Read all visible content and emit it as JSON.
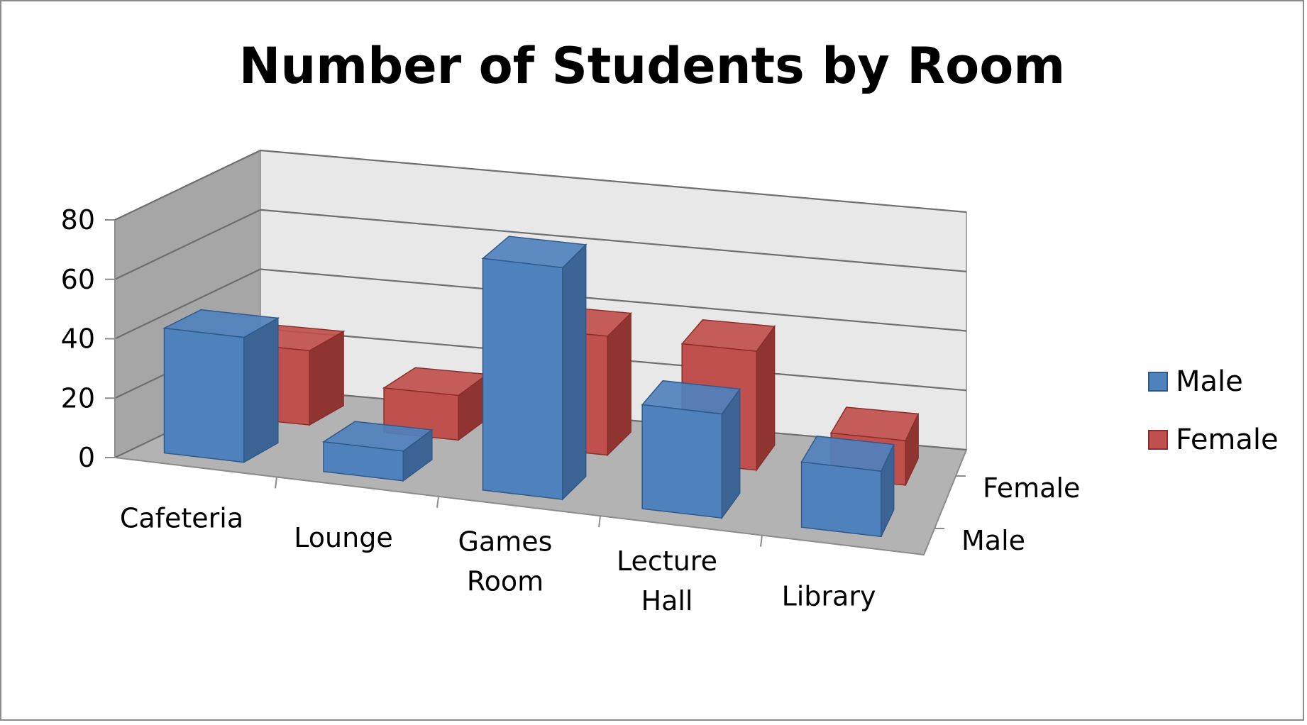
{
  "chart_data": {
    "type": "bar",
    "style": "3d-column",
    "title": "Number of Students by Room",
    "categories": [
      "Cafeteria",
      "Lounge",
      "Games Room",
      "Lecture Hall",
      "Library"
    ],
    "series": [
      {
        "name": "Male",
        "values": [
          42,
          10,
          78,
          35,
          22
        ],
        "color": "#4f81bd"
      },
      {
        "name": "Female",
        "values": [
          25,
          15,
          40,
          40,
          15
        ],
        "color": "#c0504d"
      }
    ],
    "depth_labels": [
      "Male",
      "Female"
    ],
    "ylim": [
      0,
      80
    ],
    "yticks": [
      0,
      20,
      40,
      60,
      80
    ],
    "grid": true,
    "legend_position": "right"
  }
}
